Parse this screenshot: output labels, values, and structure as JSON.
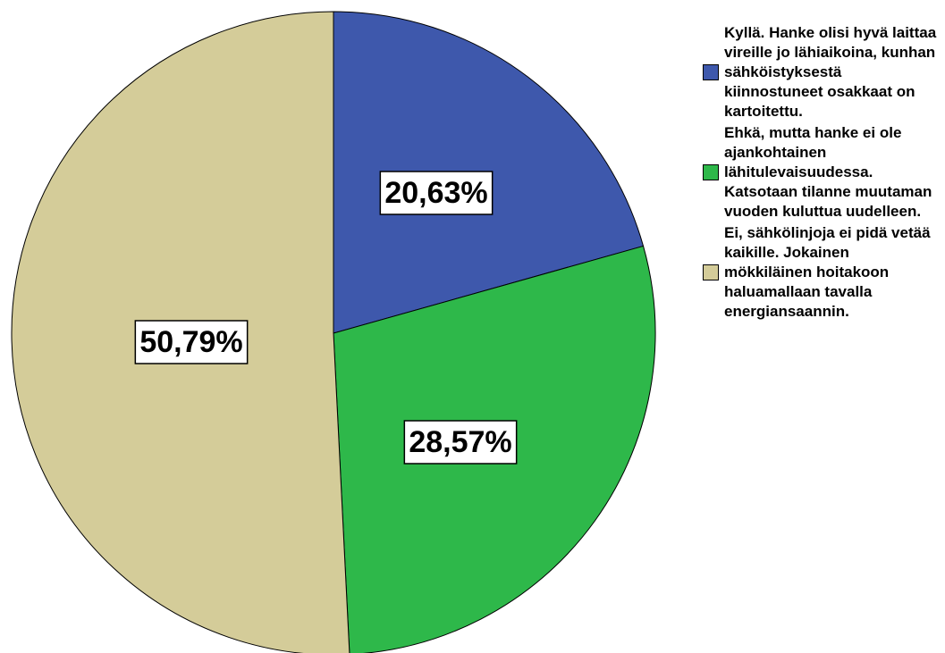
{
  "chart_data": {
    "type": "pie",
    "categories": [
      "Kyllä. Hanke olisi hyvä laittaa vireille jo lähiaikoina, kunhan sähköistyksestä kiinnostuneet osakkaat on kartoitettu.",
      "Ehkä, mutta hanke ei ole ajankohtainen lähitulevaisuudessa. Katsotaan tilanne muutaman vuoden kuluttua uudelleen.",
      "Ei, sähkölinjoja ei pidä vetää kaikille. Jokainen mökkiläinen hoitakoon haluamallaan tavalla energiansaannin."
    ],
    "values": [
      20.63,
      28.57,
      50.79
    ],
    "value_labels": [
      "20,63%",
      "28,57%",
      "50,79%"
    ],
    "colors": [
      "#3e58ac",
      "#2eb84a",
      "#d4cc99"
    ],
    "legend": "right"
  }
}
